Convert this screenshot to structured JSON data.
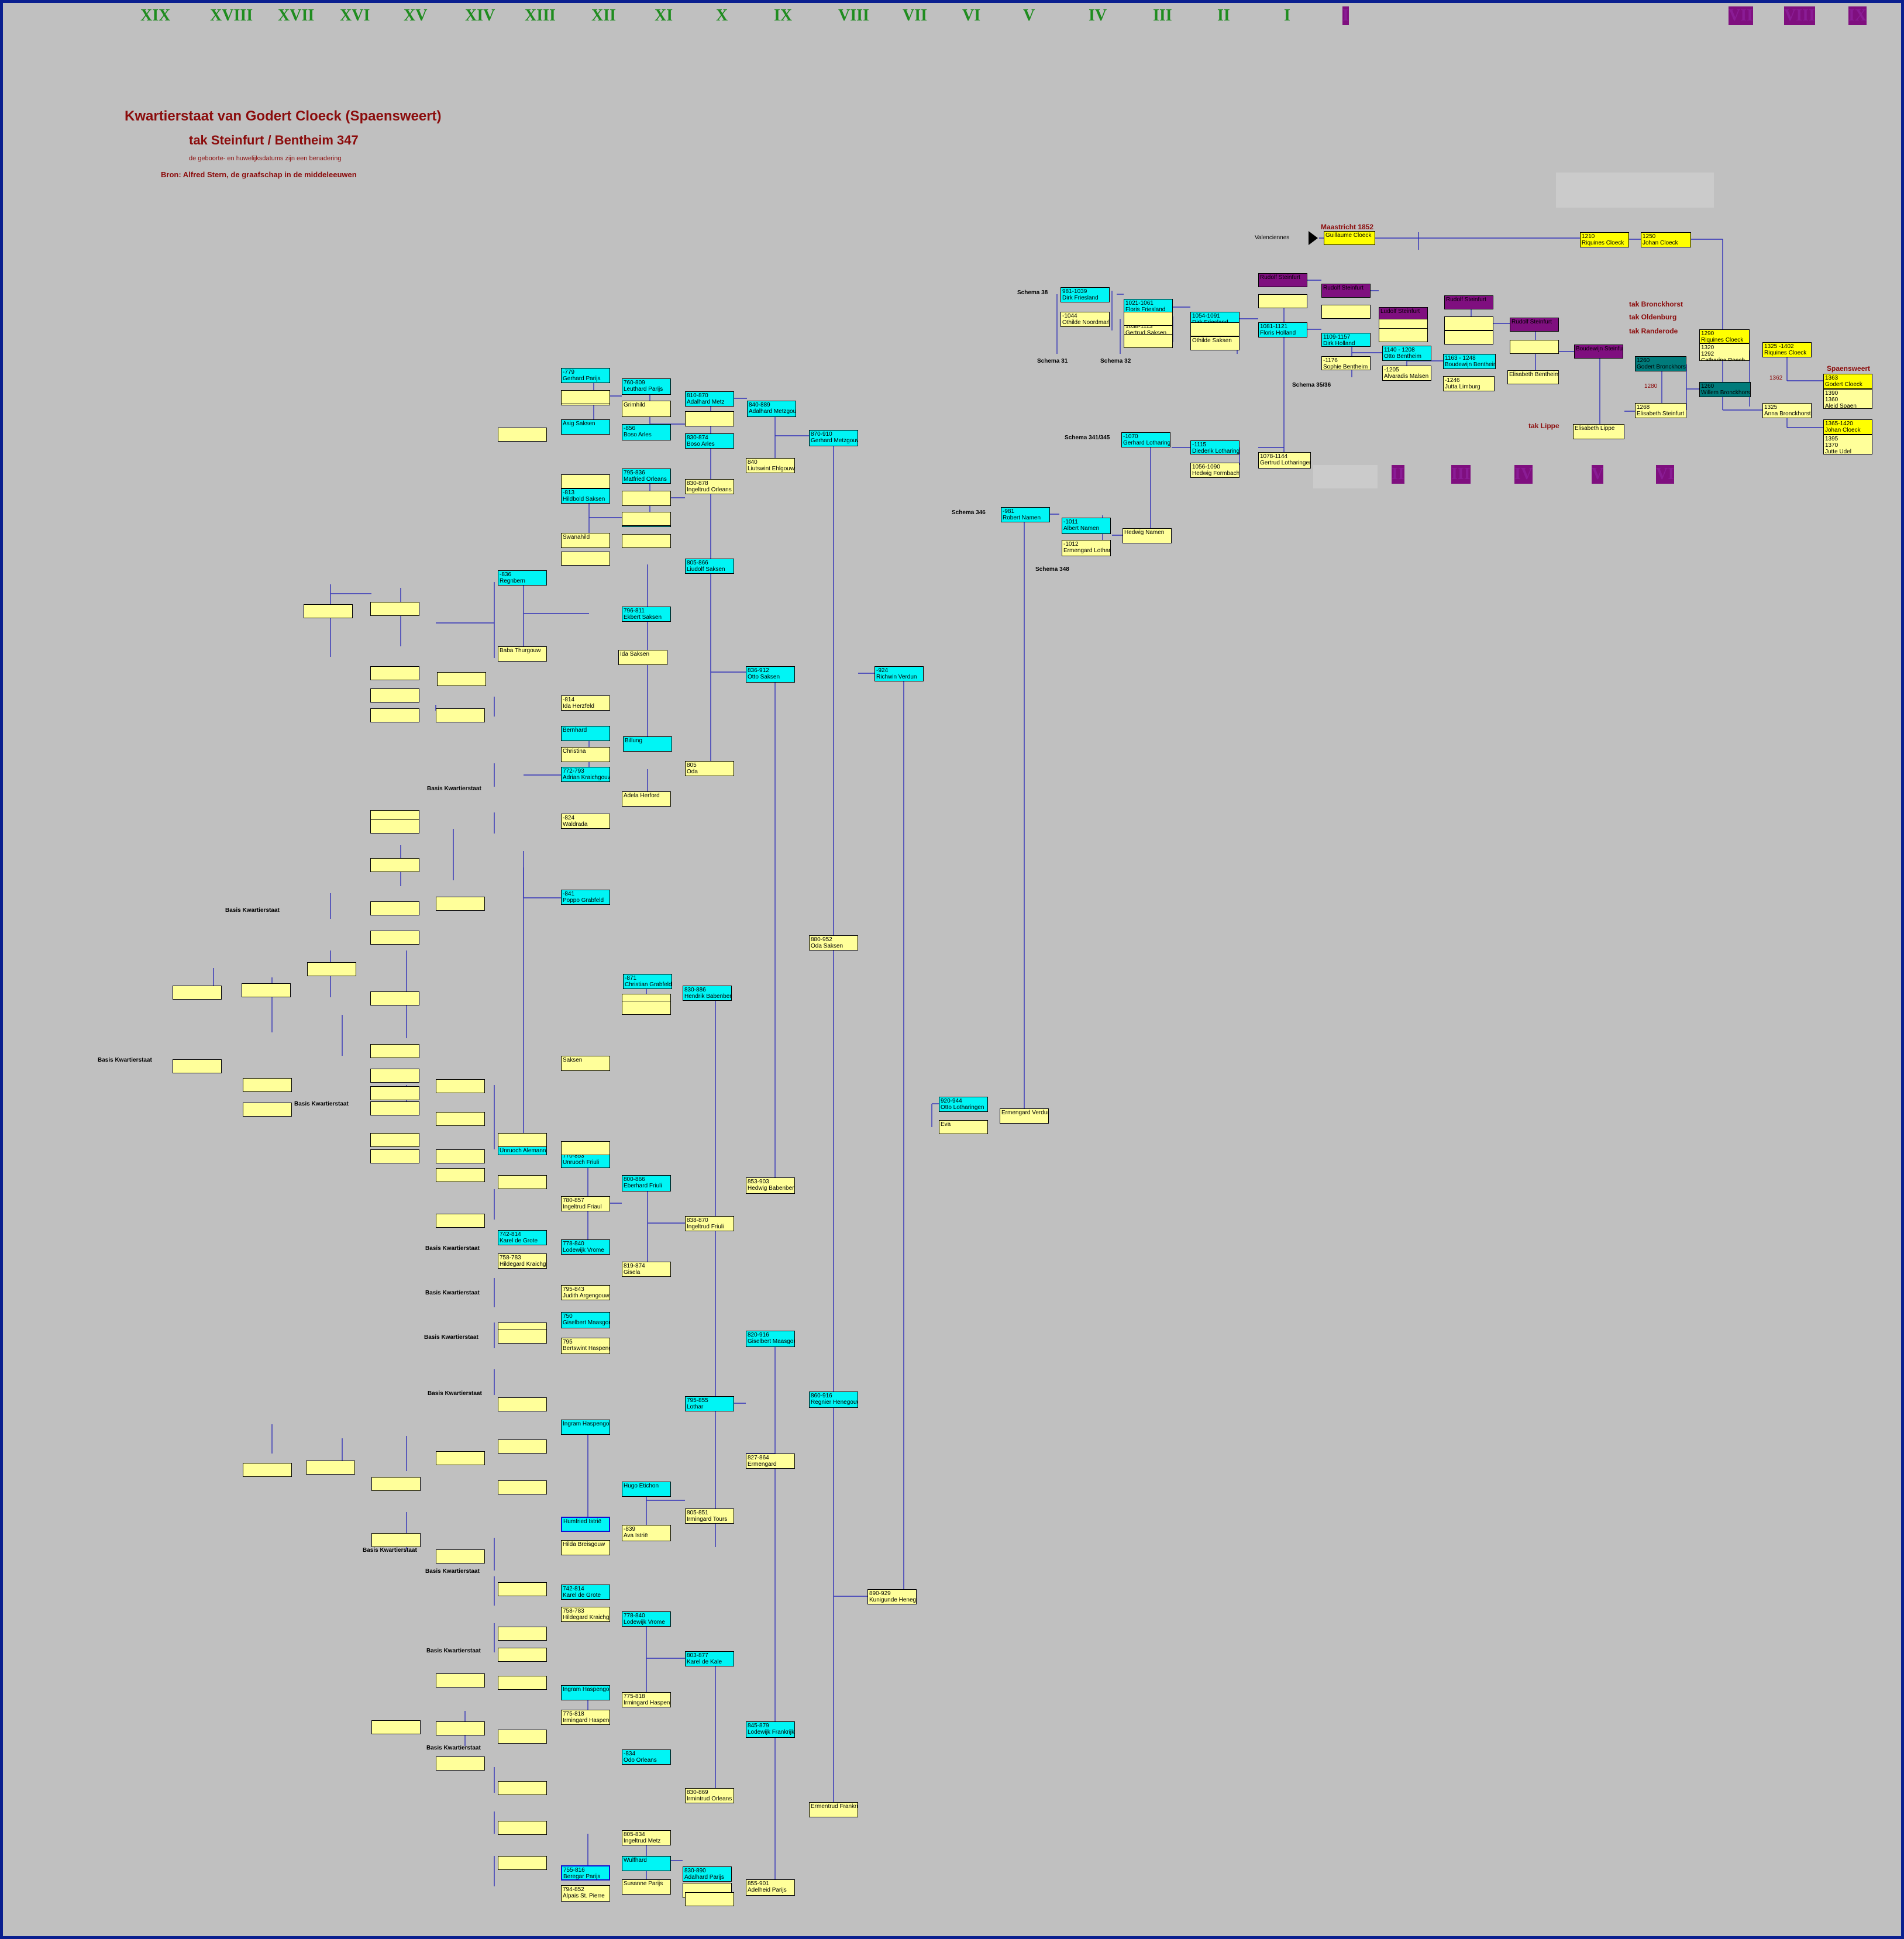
{
  "generations_left": [
    "XIX",
    "XVIII",
    "XVII",
    "XVI",
    "XV",
    "XIV",
    "XIII",
    "XII",
    "XI",
    "X",
    "IX",
    "VIII",
    "VII",
    "VI",
    "V",
    "IV",
    "III",
    "II",
    "I"
  ],
  "generations_right_top": [
    "I",
    "VII",
    "VIII",
    "IX"
  ],
  "generations_right_mid": [
    "II",
    "III",
    "IV",
    "V",
    "VI"
  ],
  "title": {
    "line1": "Kwartierstaat van Godert Cloeck (Spaensweert)",
    "line2": "tak Steinfurt / Bentheim 347",
    "note": "de geboorte- en huwelijksdatums zijn een benadering",
    "source": "Bron:  Alfred Stern, de graafschap in de middeleeuwen"
  },
  "top_line": {
    "maastricht": "Maastricht 1852",
    "valenciennes": "Valenciennes",
    "spaensweert": "Spaensweert",
    "tak_brockhorst": "tak Bronckhorst",
    "tak_oldenburg": "tak Oldenburg",
    "tak_randerode": "tak Randerode",
    "tak_lippe": "tak Lippe"
  },
  "schema_labels": {
    "s38": "Schema 38",
    "s31": "Schema 31",
    "s32": "Schema 32",
    "s3536": "Schema 35/36",
    "s341": "Schema 341/345",
    "s346": "Schema 346",
    "s348": "Schema 348",
    "basis": "Basis Kwartierstaat"
  },
  "connector_years": {
    "a": "1362",
    "b": "1280"
  },
  "boxes": [
    {
      "k": "g",
      "t": [
        "",
        "Guillaume Cloeck"
      ]
    },
    {
      "k": "g",
      "t": [
        "1210",
        "Riquines Cloeck"
      ]
    },
    {
      "k": "g",
      "t": [
        "1250",
        "Johan Cloeck"
      ]
    },
    {
      "k": "g",
      "t": [
        "1290",
        "Riquines Cloeck"
      ]
    },
    {
      "k": "y",
      "t": [
        "1320",
        "1292",
        "Catharina Roech"
      ]
    },
    {
      "k": "g",
      "t": [
        "1325 -1402",
        "Riquines Cloeck"
      ]
    },
    {
      "k": "y",
      "t": [
        "1325",
        "Anna Bronckhorst"
      ]
    },
    {
      "k": "g",
      "t": [
        "1363",
        "Godert Cloeck"
      ]
    },
    {
      "k": "y",
      "t": [
        "1390",
        "1360",
        "Aleid Spaen"
      ]
    },
    {
      "k": "g",
      "t": [
        "1365-1420",
        "Johan Cloeck"
      ]
    },
    {
      "k": "y",
      "t": [
        "1395",
        "1370",
        "Jutte Udel"
      ]
    },
    {
      "k": "t",
      "t": [
        "1260",
        "Godert Bronckhorst"
      ]
    },
    {
      "k": "t",
      "t": [
        "1260",
        "Willem Bronckhorst"
      ]
    },
    {
      "k": "y",
      "t": [
        "1268",
        "Elisabeth Steinfurt"
      ]
    },
    {
      "k": "y",
      "t": [
        "",
        "Elisabeth Lippe"
      ]
    },
    {
      "k": "p",
      "t": [
        "",
        "Boudewijn Steinfurt"
      ]
    },
    {
      "k": "p",
      "t": [
        "",
        "Rudolf Steinfurt"
      ]
    },
    {
      "k": "y",
      "t": [
        "",
        "Elisabeth Bentheim"
      ]
    },
    {
      "k": "p",
      "t": [
        "",
        "Rudolf Steinfurt"
      ]
    },
    {
      "k": "p",
      "t": [
        "",
        "Ludolf Steinfurt"
      ]
    },
    {
      "k": "p",
      "t": [
        "",
        "Rudolf Steinfurt"
      ]
    },
    {
      "k": "p",
      "t": [
        "",
        "Rudolf Steinfurt"
      ]
    },
    {
      "k": "c",
      "t": [
        "1163 - 1248",
        "Boudewijn Bentheim"
      ]
    },
    {
      "k": "y",
      "t": [
        "-1246",
        "Jutta Limburg"
      ]
    },
    {
      "k": "c",
      "t": [
        "1140 - 1208",
        "Otto Bentheim"
      ]
    },
    {
      "k": "y",
      "t": [
        "-1205",
        "Alvaradis Malsen"
      ]
    },
    {
      "k": "c",
      "t": [
        "1109-1157",
        "Dirk Holland"
      ]
    },
    {
      "k": "y",
      "t": [
        "-1176",
        "Sophie Bentheim"
      ]
    },
    {
      "k": "c",
      "t": [
        "1081-1121",
        "Floris Holland"
      ]
    },
    {
      "k": "y",
      "t": [
        "1078-1144",
        "Gertrud Lotharingen"
      ]
    },
    {
      "k": "c",
      "t": [
        "1054-1091",
        "Dirk Friesland"
      ]
    },
    {
      "k": "y",
      "t": [
        "",
        "Othilde Saksen"
      ]
    },
    {
      "k": "c",
      "t": [
        "1021-1061",
        "Floris Friesland"
      ]
    },
    {
      "k": "y",
      "t": [
        "1038-1113",
        "Gertrud Saksen"
      ]
    },
    {
      "k": "c",
      "t": [
        "981-1039",
        "Dirk Friesland"
      ]
    },
    {
      "k": "y",
      "t": [
        "-1044",
        "Othilde Noordmark"
      ]
    },
    {
      "k": "c",
      "t": [
        "-1115",
        "Diederik Lotharingen"
      ]
    },
    {
      "k": "y",
      "t": [
        "1056-1090",
        "Hedwig Formbach"
      ]
    },
    {
      "k": "c",
      "t": [
        "-1070",
        "Gerhard Lotharingen"
      ]
    },
    {
      "k": "y",
      "t": [
        "",
        "Hedwig Namen"
      ]
    },
    {
      "k": "c",
      "t": [
        "-1011",
        "Albert Namen"
      ]
    },
    {
      "k": "y",
      "t": [
        "-1012",
        "Ermengard Lotharingen"
      ]
    },
    {
      "k": "c",
      "t": [
        "-981",
        "Robert Namen"
      ]
    },
    {
      "k": "y",
      "t": [
        "",
        "Ermengard Verdun"
      ]
    },
    {
      "k": "c",
      "t": [
        "920-944",
        "Otto Lotharingen"
      ]
    },
    {
      "k": "y",
      "t": [
        "",
        "Eva"
      ]
    },
    {
      "k": "c",
      "t": [
        "-924",
        "Richwin Verdun"
      ]
    },
    {
      "k": "y",
      "t": [
        "890-929",
        "Kunigunde Henegouwen"
      ]
    },
    {
      "k": "c",
      "t": [
        "870-910",
        "Gerhard Metzgouw"
      ]
    },
    {
      "k": "y",
      "t": [
        "880-952",
        "Oda Saksen"
      ]
    },
    {
      "k": "c",
      "t": [
        "860-916",
        "Regnier Henegouwen"
      ]
    },
    {
      "k": "y",
      "t": [
        "",
        "Ermentrud Frankrijk"
      ]
    },
    {
      "k": "c",
      "t": [
        "840-889",
        "Adalhard Metzgouw"
      ]
    },
    {
      "k": "y",
      "t": [
        "840",
        "Liutswint Ehlgouw"
      ]
    },
    {
      "k": "c",
      "t": [
        "836-912",
        "Otto Saksen"
      ]
    },
    {
      "k": "y",
      "t": [
        "853-903",
        "Hedwig Babenberg"
      ]
    },
    {
      "k": "c",
      "t": [
        "820-916",
        "Giselbert Maasgouw"
      ]
    },
    {
      "k": "y",
      "t": [
        "827-864",
        "Ermengard"
      ]
    },
    {
      "k": "c",
      "t": [
        "845-879",
        "Lodewijk Frankrijk"
      ]
    },
    {
      "k": "y",
      "t": [
        "855-901",
        "Adelheid Parijs"
      ]
    },
    {
      "k": "c",
      "t": [
        "810-870",
        "Adalhard Metz"
      ]
    },
    {
      "k": "y",
      "t": [
        "",
        ""
      ]
    },
    {
      "k": "c",
      "t": [
        "830-874",
        "Boso Arles"
      ]
    },
    {
      "k": "y",
      "t": [
        "830-878",
        "Ingeltrud Orleans"
      ]
    },
    {
      "k": "c",
      "t": [
        "805-866",
        "Liudolf Saksen"
      ]
    },
    {
      "k": "y",
      "t": [
        "805",
        "Oda"
      ]
    },
    {
      "k": "c",
      "t": [
        "830-886",
        "Hendrik Babenberg"
      ]
    },
    {
      "k": "y",
      "t": [
        "838-870",
        "Ingeltrud Friuli"
      ]
    },
    {
      "k": "c",
      "t": [
        "795-855",
        "Lothar"
      ]
    },
    {
      "k": "y",
      "t": [
        "805-851",
        "Irmingard Tours"
      ]
    },
    {
      "k": "c",
      "t": [
        "803-877",
        "Karel de Kale"
      ]
    },
    {
      "k": "y",
      "t": [
        "830-869",
        "Irmintrud Orleans"
      ]
    },
    {
      "k": "c",
      "t": [
        "830-890",
        "Adalhard Parijs"
      ]
    },
    {
      "k": "y",
      "t": [
        "",
        ""
      ]
    },
    {
      "k": "c",
      "t": [
        "760-809",
        "Leuthard Parijs"
      ]
    },
    {
      "k": "y",
      "t": [
        "",
        "Grimhild"
      ]
    },
    {
      "k": "c",
      "t": [
        "-856",
        "Boso Arles"
      ]
    },
    {
      "k": "c",
      "t": [
        "795-836",
        "Matfried Orleans"
      ]
    },
    {
      "k": "y",
      "t": [
        "",
        ""
      ]
    },
    {
      "k": "c",
      "t": [
        "-840",
        "Asig Saksen"
      ]
    },
    {
      "k": "c",
      "t": [
        "796-811",
        "Ekbert Saksen"
      ]
    },
    {
      "k": "y",
      "t": [
        "",
        "Ida Saksen"
      ]
    },
    {
      "k": "c",
      "t": [
        "",
        "Billung"
      ]
    },
    {
      "k": "y",
      "t": [
        "",
        "Adela Herford"
      ]
    },
    {
      "k": "c",
      "t": [
        "-871",
        "Christian Grabfeld"
      ]
    },
    {
      "k": "y",
      "t": [
        "",
        ""
      ]
    },
    {
      "k": "c",
      "t": [
        "800-866",
        "Eberhard Friuli"
      ]
    },
    {
      "k": "y",
      "t": [
        "819-874",
        "Gisela"
      ]
    },
    {
      "k": "c",
      "t": [
        "",
        "Hugo Etichon"
      ]
    },
    {
      "k": "y",
      "t": [
        "-839",
        "Ava Istrië"
      ]
    },
    {
      "k": "c",
      "t": [
        "778-840",
        "Lodewijk Vrome"
      ]
    },
    {
      "k": "y",
      "t": [
        "775-818",
        "Irmingard Haspengouw"
      ]
    },
    {
      "k": "c",
      "t": [
        "-834",
        "Odo Orleans"
      ]
    },
    {
      "k": "y",
      "t": [
        "805-834",
        "Ingeltrud Metz"
      ]
    },
    {
      "k": "c",
      "t": [
        "",
        "Wulfhard"
      ]
    },
    {
      "k": "y",
      "t": [
        "",
        "Susanne Parijs"
      ]
    },
    {
      "k": "c",
      "t": [
        "-779",
        "Gerhard Parijs"
      ]
    },
    {
      "k": "y",
      "t": [
        "",
        "Rotrud"
      ]
    },
    {
      "k": "c",
      "t": [
        "",
        "Asig Saksen"
      ]
    },
    {
      "k": "y",
      "t": [
        "",
        "Swanahild"
      ]
    },
    {
      "k": "c",
      "t": [
        "-813",
        "Hildbold Saksen"
      ]
    },
    {
      "k": "c",
      "t": [
        "-836",
        "Regnbern"
      ]
    },
    {
      "k": "y",
      "t": [
        "",
        "Baba Thurgouw"
      ]
    },
    {
      "k": "y",
      "t": [
        "-814",
        "Ida Herzfeld"
      ]
    },
    {
      "k": "c",
      "t": [
        "",
        "Bernhard"
      ]
    },
    {
      "k": "y",
      "t": [
        "",
        "Christina"
      ]
    },
    {
      "k": "c",
      "t": [
        "772-793",
        "Adrian Kraichgouw"
      ]
    },
    {
      "k": "y",
      "t": [
        "-824",
        "Waldrada"
      ]
    },
    {
      "k": "c",
      "t": [
        "-841",
        "Poppo Grabfeld"
      ]
    },
    {
      "k": "y",
      "t": [
        "",
        "Saksen"
      ]
    },
    {
      "k": "c",
      "t": [
        "-811",
        "Unruoch Alemannië"
      ]
    },
    {
      "k": "c",
      "t": [
        "770-853",
        "Unruoch Friuli"
      ]
    },
    {
      "k": "y",
      "t": [
        "780-857",
        "Ingeltrud Friaul"
      ]
    },
    {
      "k": "c",
      "t": [
        "778-840",
        "Lodewijk Vrome"
      ]
    },
    {
      "k": "y",
      "t": [
        "795-843",
        "Judith Argengouw"
      ]
    },
    {
      "k": "c",
      "t": [
        "742-814",
        "Karel de Grote"
      ]
    },
    {
      "k": "y",
      "t": [
        "758-783",
        "Hildegard Kraichgouw"
      ]
    },
    {
      "k": "c",
      "t": [
        "",
        "Ingram Haspengouw"
      ]
    },
    {
      "k": "c",
      "t": [
        "750",
        "Giselbert Maasgouw"
      ]
    },
    {
      "k": "y",
      "t": [
        "795",
        "Bertswint Haspengouw"
      ]
    },
    {
      "k": "c",
      "t": [
        "",
        "Humfried Istrië"
      ]
    },
    {
      "k": "y",
      "t": [
        "",
        "Hilda Breisgouw"
      ]
    },
    {
      "k": "c",
      "t": [
        "742-814",
        "Karel de Grote"
      ]
    },
    {
      "k": "y",
      "t": [
        "758-783",
        "Hildegard Kraichgouw"
      ]
    },
    {
      "k": "c",
      "t": [
        "",
        "Ingram Haspengouw"
      ]
    },
    {
      "k": "y",
      "t": [
        "775-818",
        "Irmingard Haspengouw"
      ]
    },
    {
      "k": "c",
      "t": [
        "755-816",
        "Beregar Parijs"
      ]
    },
    {
      "k": "y",
      "t": [
        "794-852",
        "Alpais St. Pierre"
      ]
    }
  ]
}
